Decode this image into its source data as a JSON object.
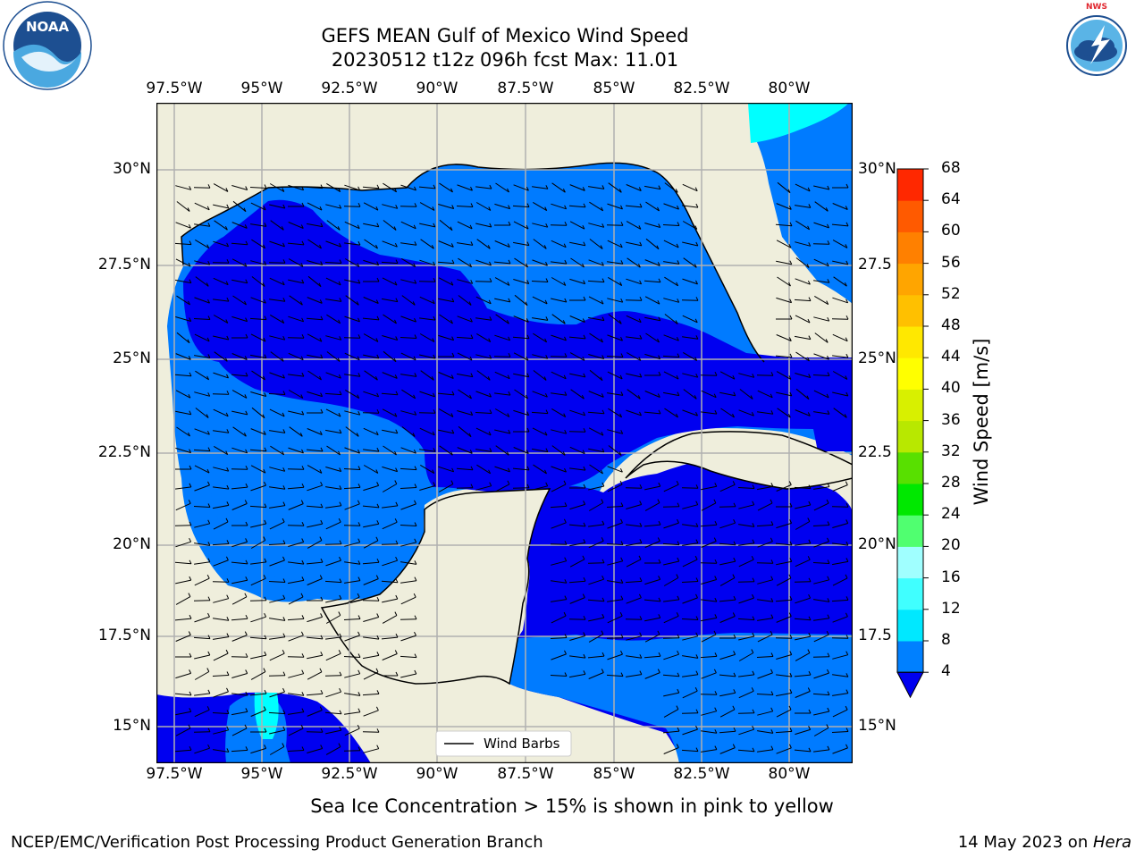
{
  "title": {
    "line1": "GEFS MEAN Gulf of Mexico Wind Speed",
    "line2": "20230512 t12z 096h fcst   Max: 11.01"
  },
  "map": {
    "lon_ticks": [
      "97.5°W",
      "95°W",
      "92.5°W",
      "90°W",
      "87.5°W",
      "85°W",
      "82.5°W",
      "80°W"
    ],
    "lat_ticks_left": [
      "30°N",
      "27.5°N",
      "25°N",
      "22.5°N",
      "20°N",
      "17.5°N",
      "15°N"
    ],
    "lat_ticks_right": [
      "30°N",
      "27.5",
      "25°N",
      "22.5",
      "20°N",
      "17.5",
      "15°N"
    ],
    "legend": {
      "label": "Wind Barbs"
    },
    "colors": {
      "land": "#efeedc",
      "speed_4_8": "#007bff",
      "speed_below_4": "#0000f0",
      "speed_8_12": "#00ffff"
    }
  },
  "colorbar": {
    "title": "Wind Speed [m/s]",
    "levels": [
      "4",
      "8",
      "12",
      "16",
      "20",
      "24",
      "28",
      "32",
      "36",
      "40",
      "44",
      "48",
      "52",
      "56",
      "60",
      "64",
      "68"
    ],
    "colors": [
      "#0080ff",
      "#00e8ff",
      "#40ffff",
      "#a0ffff",
      "#50ff70",
      "#00e800",
      "#58e000",
      "#b8e800",
      "#d8f000",
      "#ffff00",
      "#ffe800",
      "#ffc000",
      "#ffa500",
      "#ff8000",
      "#ff5a00",
      "#ff2800"
    ],
    "under_color": "#0000f0"
  },
  "caption": "Sea Ice Concentration > 15% is shown in pink to yellow",
  "footer": {
    "left": "NCEP/EMC/Verification Post Processing Product Generation Branch",
    "right_prefix": "14 May 2023 on ",
    "right_italic": "Hera"
  },
  "logos": {
    "noaa_text": "NOAA",
    "noaa_ring": "NATIONAL OCEANIC AND ATMOSPHERIC ADMINISTRATION · U.S. DEPARTMENT OF COMMERCE",
    "nws_ring": "NATIONAL WEATHER SERVICE"
  }
}
